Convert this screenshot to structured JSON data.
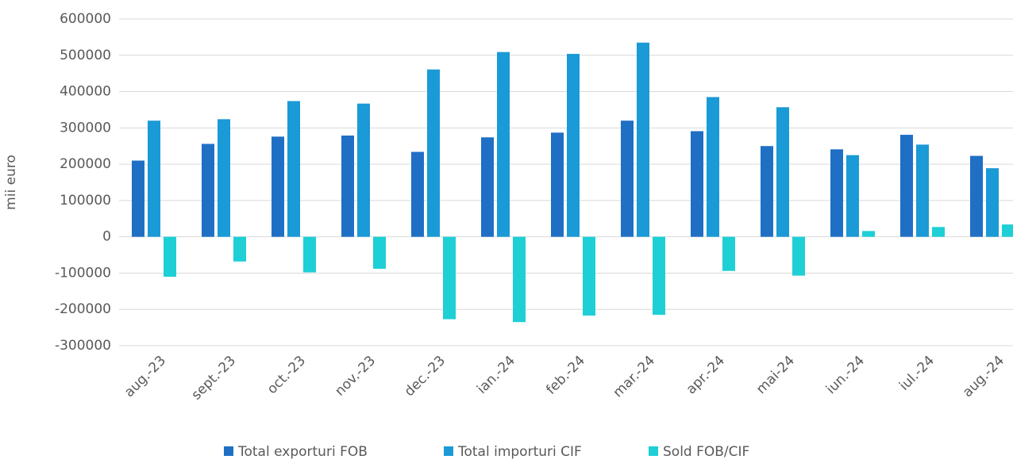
{
  "chart_data": {
    "type": "bar",
    "y_label": "mii euro",
    "categories": [
      "aug.-23",
      "sept.-23",
      "oct.-23",
      "nov.-23",
      "dec.-23",
      "ian.-24",
      "feb.-24",
      "mar.-24",
      "apr.-24",
      "mai-24",
      "iun.-24",
      "iul.-24",
      "aug.-24"
    ],
    "series": [
      {
        "name": "Total exporturi FOB",
        "color": "#1f6fc5",
        "values": [
          210000,
          256000,
          276000,
          279000,
          234000,
          274000,
          287000,
          320000,
          291000,
          250000,
          241000,
          281000,
          223000
        ]
      },
      {
        "name": "Total importuri CIF",
        "color": "#1a9ad6",
        "values": [
          320000,
          324000,
          374000,
          367000,
          461000,
          509000,
          504000,
          535000,
          385000,
          357000,
          225000,
          254000,
          189000
        ]
      },
      {
        "name": "Sold FOB/CIF",
        "color": "#1ecfd6",
        "values": [
          -110000,
          -68000,
          -98000,
          -88000,
          -227000,
          -235000,
          -217000,
          -215000,
          -94000,
          -107000,
          16000,
          27000,
          34000
        ]
      }
    ],
    "ylim": [
      -300000,
      600000
    ],
    "yticks": [
      -300000,
      -200000,
      -100000,
      0,
      100000,
      200000,
      300000,
      400000,
      500000,
      600000
    ],
    "grid": true,
    "legend": "bottom"
  }
}
